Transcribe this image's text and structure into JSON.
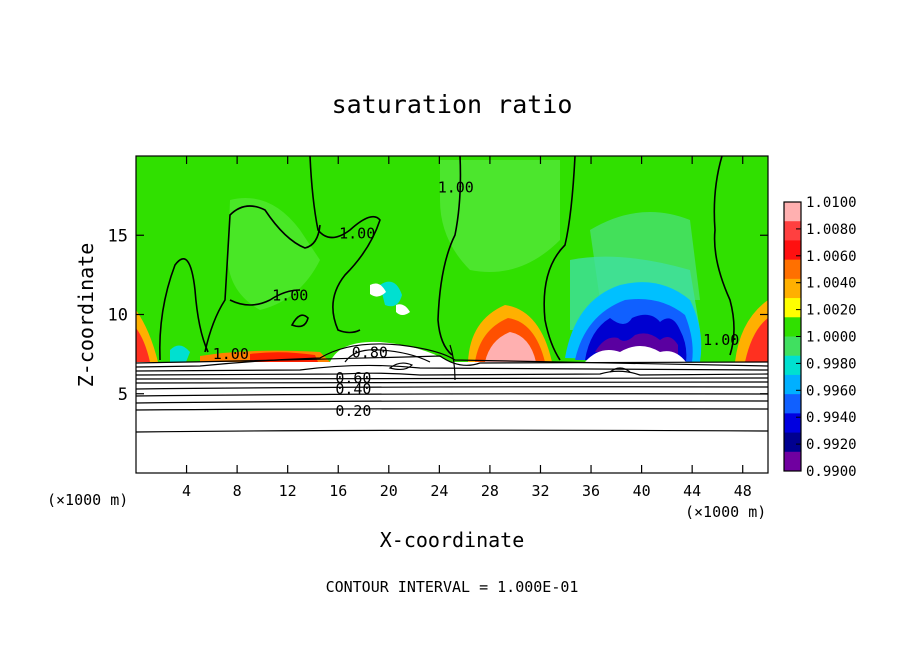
{
  "chart_data": {
    "type": "heatmap",
    "title": "saturation ratio",
    "xlabel": "X-coordinate",
    "ylabel": "Z-coordinate",
    "x_unit": "(×1000 m)",
    "y_unit": "(×1000 m)",
    "xlim": [
      0,
      50
    ],
    "ylim": [
      0,
      20
    ],
    "x_ticks": [
      4,
      8,
      12,
      16,
      20,
      24,
      28,
      32,
      36,
      40,
      44,
      48
    ],
    "y_ticks": [
      5,
      10,
      15
    ],
    "footer": "CONTOUR INTERVAL = 1.000E-01",
    "colorbar": {
      "min": 0.99,
      "max": 1.01,
      "labels": [
        "1.0100",
        "1.0080",
        "1.0060",
        "1.0040",
        "1.0020",
        "1.0000",
        "0.9980",
        "0.9960",
        "0.9940",
        "0.9920",
        "0.9900"
      ],
      "colors": [
        "#ffb0b0",
        "#ff4040",
        "#ff1010",
        "#ff7000",
        "#ffb000",
        "#ffff00",
        "#30e000",
        "#40e060",
        "#00e0d0",
        "#00b0ff",
        "#1060ff",
        "#0000e0",
        "#000090",
        "#7000a0"
      ]
    },
    "contour_labels": [
      {
        "text": "1.00",
        "x": 12.2,
        "z": 11.2
      },
      {
        "text": "1.00",
        "x": 17.5,
        "z": 15.1
      },
      {
        "text": "1.00",
        "x": 25.3,
        "z": 18.0
      },
      {
        "text": "1.00",
        "x": 46.3,
        "z": 8.4
      },
      {
        "text": "1.00",
        "x": 7.5,
        "z": 7.5
      },
      {
        "text": "0.80",
        "x": 18.5,
        "z": 7.6
      },
      {
        "text": "0.60",
        "x": 17.2,
        "z": 6.0
      },
      {
        "text": "0.40",
        "x": 17.2,
        "z": 5.3
      },
      {
        "text": "0.20",
        "x": 17.2,
        "z": 3.9
      }
    ]
  }
}
